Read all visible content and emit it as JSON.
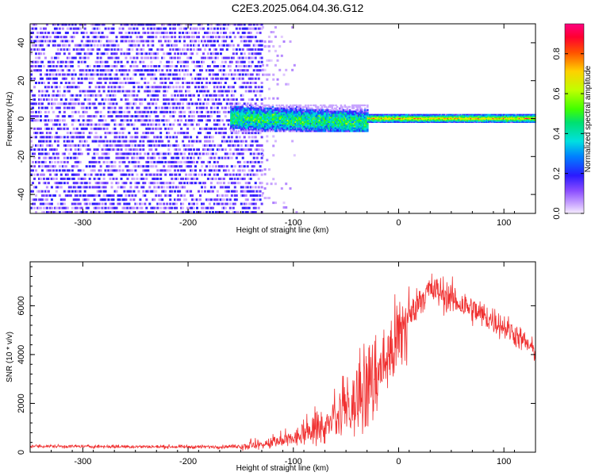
{
  "title": "C2E3.2025.064.04.36.G12",
  "colors": {
    "snr_line": "#f03030",
    "axes": "#000000",
    "background": "#ffffff"
  },
  "chart_data": [
    {
      "type": "heatmap",
      "title": "",
      "xlabel": "Height of straight line (km)",
      "ylabel": "Frequency (Hz)",
      "xlim": [
        -350,
        130
      ],
      "ylim": [
        -50,
        50
      ],
      "x_ticks": [
        -300,
        -200,
        -100,
        0,
        100
      ],
      "y_ticks": [
        -40,
        -20,
        0,
        20,
        40
      ],
      "colorbar": {
        "label": "Normalized spectral amplitude",
        "range": [
          0,
          0.95
        ],
        "ticks": [
          0.0,
          0.2,
          0.4,
          0.6,
          0.8
        ],
        "colormap": "rainbow"
      },
      "features": [
        {
          "name": "broadband_noise",
          "x_range": [
            -350,
            -130
          ],
          "freq_range": [
            -50,
            50
          ],
          "amplitude": 0.1
        },
        {
          "name": "sparse_noise",
          "x_range": [
            -130,
            -95
          ],
          "freq_range": [
            -50,
            50
          ],
          "amplitude": 0.05
        },
        {
          "name": "wide_band",
          "x_range": [
            -160,
            -30
          ],
          "freq_range": [
            -7,
            7
          ],
          "amplitude": 0.45
        },
        {
          "name": "narrow_carrier",
          "x_range": [
            -30,
            130
          ],
          "freq_range": [
            -2,
            2
          ],
          "amplitude": 0.7
        }
      ]
    },
    {
      "type": "line",
      "title": "",
      "xlabel": "Height of straight line (km)",
      "ylabel": "SNR (10 * v/v)",
      "xlim": [
        -350,
        130
      ],
      "ylim": [
        0,
        7800
      ],
      "x_ticks": [
        -300,
        -200,
        -100,
        0,
        100
      ],
      "y_ticks": [
        0,
        2000,
        4000,
        6000
      ],
      "series": [
        {
          "x": [
            -350,
            -320,
            -290,
            -260,
            -230,
            -200,
            -170,
            -150,
            -130,
            -110,
            -100,
            -90,
            -80,
            -70,
            -60,
            -50,
            -40,
            -30,
            -20,
            -10,
            0,
            10,
            20,
            30,
            40,
            50,
            60,
            70,
            80,
            90,
            100,
            110,
            120,
            130
          ],
          "y": [
            250,
            240,
            235,
            230,
            225,
            220,
            220,
            250,
            300,
            420,
            550,
            700,
            850,
            1000,
            1250,
            1600,
            2000,
            2500,
            3200,
            3900,
            4700,
            5500,
            6300,
            6650,
            6550,
            6300,
            6050,
            5850,
            5600,
            5400,
            5150,
            4850,
            4500,
            4100
          ]
        }
      ]
    }
  ]
}
